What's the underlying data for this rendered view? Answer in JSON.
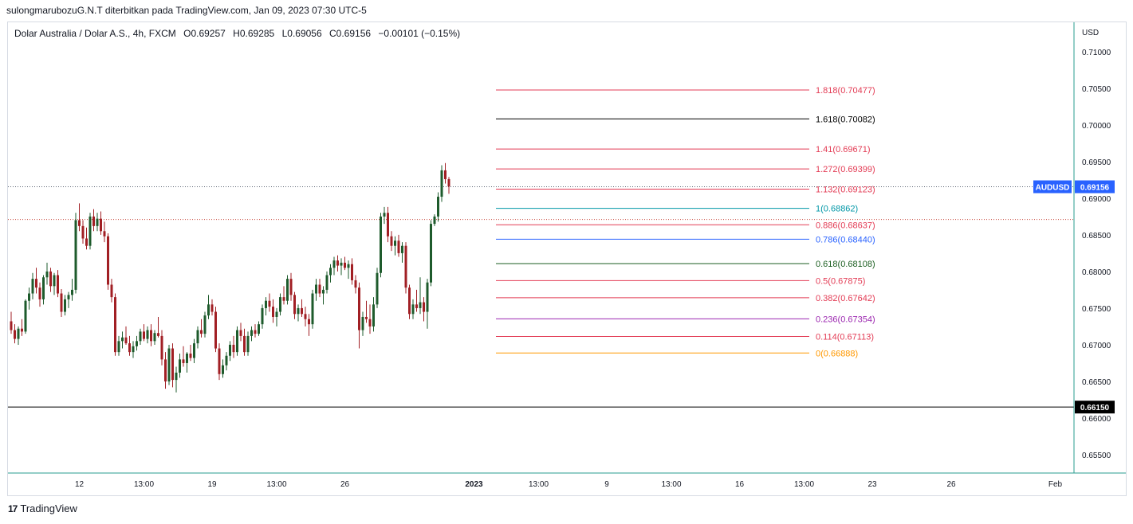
{
  "header": {
    "publisher_line": "sulongmarubozuG.N.T diterbitkan pada TradingView.com, Jan 09, 2023 07:30 UTC-5"
  },
  "symbol_info": {
    "title": "Dolar Australia / Dolar A.S., 4h, FXCM",
    "open_label": "O",
    "open": "0.69257",
    "high_label": "H",
    "high": "0.69285",
    "low_label": "L",
    "low": "0.69056",
    "close_label": "C",
    "close": "0.69156",
    "change": "−0.00101 (−0.15%)"
  },
  "footer": {
    "brand": "TradingView",
    "logo_text": "17"
  },
  "colors": {
    "up": "#1e5b2c",
    "down": "#a11f24",
    "axis_text": "#131722",
    "grid_border": "#d6dbe3",
    "price_badge": "#2962ff",
    "horizontal_line": "#000000",
    "dotted_price": "#5a6372",
    "dotted_red": "#c84a3f"
  },
  "chart_data": {
    "type": "candlestick",
    "y_axis": {
      "currency": "USD",
      "ticks": [
        "0.71000",
        "0.70500",
        "0.70000",
        "0.69500",
        "0.69000",
        "0.68500",
        "0.68000",
        "0.67500",
        "0.67000",
        "0.66500",
        "0.66000",
        "0.65500"
      ],
      "ylim": [
        0.6525,
        0.714
      ]
    },
    "x_axis": {
      "ticks": [
        {
          "label": "12",
          "bold": false,
          "idx": 19
        },
        {
          "label": "13:00",
          "bold": false,
          "idx": 37
        },
        {
          "label": "19",
          "bold": false,
          "idx": 56
        },
        {
          "label": "13:00",
          "bold": false,
          "idx": 74
        },
        {
          "label": "26",
          "bold": false,
          "idx": 93
        },
        {
          "label": "2023",
          "bold": true,
          "idx": 129
        },
        {
          "label": "13:00",
          "bold": false,
          "idx": 147
        },
        {
          "label": "9",
          "bold": false,
          "idx": 166
        },
        {
          "label": "13:00",
          "bold": false,
          "idx": 184
        },
        {
          "label": "16",
          "bold": false,
          "idx": 203
        },
        {
          "label": "13:00",
          "bold": false,
          "idx": 221
        },
        {
          "label": "23",
          "bold": false,
          "idx": 240
        },
        {
          "label": "26",
          "bold": false,
          "idx": 262
        },
        {
          "label": "Feb",
          "bold": false,
          "idx": 291
        }
      ]
    },
    "current_price": {
      "symbol": "AUDUSD",
      "value": "0.69156",
      "price": 0.69156
    },
    "horizontal_line": {
      "value": "0.66150",
      "price": 0.6615
    },
    "dotted_level": 0.6871,
    "fibonacci": [
      {
        "label": "1.818(0.70477)",
        "price": 0.70477,
        "color": "#e33b54"
      },
      {
        "label": "1.618(0.70082)",
        "price": 0.70082,
        "color": "#000000"
      },
      {
        "label": "1.41(0.69671)",
        "price": 0.69671,
        "color": "#e33b54"
      },
      {
        "label": "1.272(0.69399)",
        "price": 0.69399,
        "color": "#e33b54"
      },
      {
        "label": "1.132(0.69123)",
        "price": 0.69123,
        "color": "#e33b54"
      },
      {
        "label": "1(0.68862)",
        "price": 0.68862,
        "color": "#0097a7"
      },
      {
        "label": "0.886(0.68637)",
        "price": 0.68637,
        "color": "#e33b54"
      },
      {
        "label": "0.786(0.68440)",
        "price": 0.6844,
        "color": "#2962ff"
      },
      {
        "label": "0.618(0.68108)",
        "price": 0.68108,
        "color": "#1b5e20"
      },
      {
        "label": "0.5(0.67875)",
        "price": 0.67875,
        "color": "#e33b54"
      },
      {
        "label": "0.382(0.67642)",
        "price": 0.67642,
        "color": "#e33b54"
      },
      {
        "label": "0.236(0.67354)",
        "price": 0.67354,
        "color": "#9c27b0"
      },
      {
        "label": "0.114(0.67113)",
        "price": 0.67113,
        "color": "#e33b54"
      },
      {
        "label": "0(0.66888)",
        "price": 0.66888,
        "color": "#ff9800"
      }
    ],
    "candles": [
      {
        "o": 0.6732,
        "h": 0.6745,
        "l": 0.6715,
        "c": 0.672
      },
      {
        "o": 0.672,
        "h": 0.6728,
        "l": 0.6702,
        "c": 0.6708
      },
      {
        "o": 0.6708,
        "h": 0.6725,
        "l": 0.67,
        "c": 0.6722
      },
      {
        "o": 0.6722,
        "h": 0.6735,
        "l": 0.6712,
        "c": 0.6718
      },
      {
        "o": 0.6718,
        "h": 0.6762,
        "l": 0.6715,
        "c": 0.676
      },
      {
        "o": 0.676,
        "h": 0.6778,
        "l": 0.6748,
        "c": 0.677
      },
      {
        "o": 0.677,
        "h": 0.6798,
        "l": 0.6762,
        "c": 0.679
      },
      {
        "o": 0.679,
        "h": 0.6805,
        "l": 0.677,
        "c": 0.6778
      },
      {
        "o": 0.6778,
        "h": 0.6785,
        "l": 0.6752,
        "c": 0.6762
      },
      {
        "o": 0.6762,
        "h": 0.6795,
        "l": 0.6755,
        "c": 0.6792
      },
      {
        "o": 0.6792,
        "h": 0.6812,
        "l": 0.6782,
        "c": 0.68
      },
      {
        "o": 0.68,
        "h": 0.6805,
        "l": 0.6772,
        "c": 0.678
      },
      {
        "o": 0.678,
        "h": 0.6798,
        "l": 0.6768,
        "c": 0.6795
      },
      {
        "o": 0.6795,
        "h": 0.6802,
        "l": 0.6765,
        "c": 0.677
      },
      {
        "o": 0.677,
        "h": 0.6776,
        "l": 0.6738,
        "c": 0.6745
      },
      {
        "o": 0.6745,
        "h": 0.6768,
        "l": 0.674,
        "c": 0.6762
      },
      {
        "o": 0.6762,
        "h": 0.6772,
        "l": 0.675,
        "c": 0.6768
      },
      {
        "o": 0.6768,
        "h": 0.679,
        "l": 0.676,
        "c": 0.6775
      },
      {
        "o": 0.6775,
        "h": 0.688,
        "l": 0.677,
        "c": 0.687
      },
      {
        "o": 0.687,
        "h": 0.6893,
        "l": 0.6855,
        "c": 0.6862
      },
      {
        "o": 0.6862,
        "h": 0.687,
        "l": 0.6838,
        "c": 0.6845
      },
      {
        "o": 0.6845,
        "h": 0.686,
        "l": 0.683,
        "c": 0.6835
      },
      {
        "o": 0.6835,
        "h": 0.688,
        "l": 0.683,
        "c": 0.6875
      },
      {
        "o": 0.6875,
        "h": 0.6885,
        "l": 0.6855,
        "c": 0.6862
      },
      {
        "o": 0.6862,
        "h": 0.688,
        "l": 0.6855,
        "c": 0.6872
      },
      {
        "o": 0.6872,
        "h": 0.6882,
        "l": 0.685,
        "c": 0.6855
      },
      {
        "o": 0.6855,
        "h": 0.6868,
        "l": 0.684,
        "c": 0.6848
      },
      {
        "o": 0.6848,
        "h": 0.6852,
        "l": 0.6775,
        "c": 0.6782
      },
      {
        "o": 0.6782,
        "h": 0.679,
        "l": 0.6758,
        "c": 0.6765
      },
      {
        "o": 0.6765,
        "h": 0.677,
        "l": 0.6685,
        "c": 0.669
      },
      {
        "o": 0.669,
        "h": 0.6712,
        "l": 0.6685,
        "c": 0.6705
      },
      {
        "o": 0.6705,
        "h": 0.6718,
        "l": 0.6695,
        "c": 0.671
      },
      {
        "o": 0.671,
        "h": 0.6725,
        "l": 0.67,
        "c": 0.6702
      },
      {
        "o": 0.6702,
        "h": 0.6712,
        "l": 0.6685,
        "c": 0.669
      },
      {
        "o": 0.669,
        "h": 0.6705,
        "l": 0.6682,
        "c": 0.6698
      },
      {
        "o": 0.6698,
        "h": 0.6712,
        "l": 0.6692,
        "c": 0.6705
      },
      {
        "o": 0.6705,
        "h": 0.6722,
        "l": 0.67,
        "c": 0.6718
      },
      {
        "o": 0.6718,
        "h": 0.6728,
        "l": 0.6705,
        "c": 0.6708
      },
      {
        "o": 0.6708,
        "h": 0.6725,
        "l": 0.6702,
        "c": 0.672
      },
      {
        "o": 0.672,
        "h": 0.6728,
        "l": 0.6698,
        "c": 0.6705
      },
      {
        "o": 0.6705,
        "h": 0.672,
        "l": 0.67,
        "c": 0.6716
      },
      {
        "o": 0.6716,
        "h": 0.6738,
        "l": 0.671,
        "c": 0.6712
      },
      {
        "o": 0.6712,
        "h": 0.672,
        "l": 0.6672,
        "c": 0.668
      },
      {
        "o": 0.668,
        "h": 0.669,
        "l": 0.664,
        "c": 0.665
      },
      {
        "o": 0.665,
        "h": 0.67,
        "l": 0.6645,
        "c": 0.6695
      },
      {
        "o": 0.6695,
        "h": 0.6702,
        "l": 0.6642,
        "c": 0.6652
      },
      {
        "o": 0.6652,
        "h": 0.667,
        "l": 0.6635,
        "c": 0.6662
      },
      {
        "o": 0.6662,
        "h": 0.6688,
        "l": 0.6655,
        "c": 0.668
      },
      {
        "o": 0.668,
        "h": 0.6698,
        "l": 0.667,
        "c": 0.6675
      },
      {
        "o": 0.6675,
        "h": 0.669,
        "l": 0.6662,
        "c": 0.6688
      },
      {
        "o": 0.6688,
        "h": 0.67,
        "l": 0.6678,
        "c": 0.6682
      },
      {
        "o": 0.6682,
        "h": 0.6708,
        "l": 0.6675,
        "c": 0.6702
      },
      {
        "o": 0.6702,
        "h": 0.6725,
        "l": 0.6695,
        "c": 0.672
      },
      {
        "o": 0.672,
        "h": 0.6735,
        "l": 0.671,
        "c": 0.6715
      },
      {
        "o": 0.6715,
        "h": 0.6745,
        "l": 0.671,
        "c": 0.674
      },
      {
        "o": 0.674,
        "h": 0.6768,
        "l": 0.6735,
        "c": 0.6755
      },
      {
        "o": 0.6755,
        "h": 0.6762,
        "l": 0.674,
        "c": 0.6745
      },
      {
        "o": 0.6745,
        "h": 0.6752,
        "l": 0.669,
        "c": 0.6695
      },
      {
        "o": 0.6695,
        "h": 0.6702,
        "l": 0.6652,
        "c": 0.666
      },
      {
        "o": 0.666,
        "h": 0.668,
        "l": 0.6655,
        "c": 0.6672
      },
      {
        "o": 0.6672,
        "h": 0.669,
        "l": 0.6665,
        "c": 0.6685
      },
      {
        "o": 0.6685,
        "h": 0.6705,
        "l": 0.6678,
        "c": 0.67
      },
      {
        "o": 0.67,
        "h": 0.6712,
        "l": 0.6682,
        "c": 0.669
      },
      {
        "o": 0.669,
        "h": 0.6725,
        "l": 0.6685,
        "c": 0.672
      },
      {
        "o": 0.672,
        "h": 0.673,
        "l": 0.6705,
        "c": 0.6712
      },
      {
        "o": 0.6712,
        "h": 0.6722,
        "l": 0.6685,
        "c": 0.669
      },
      {
        "o": 0.669,
        "h": 0.6718,
        "l": 0.6685,
        "c": 0.6712
      },
      {
        "o": 0.6712,
        "h": 0.6725,
        "l": 0.6705,
        "c": 0.672
      },
      {
        "o": 0.672,
        "h": 0.6728,
        "l": 0.671,
        "c": 0.6715
      },
      {
        "o": 0.6715,
        "h": 0.6732,
        "l": 0.6712,
        "c": 0.6728
      },
      {
        "o": 0.6728,
        "h": 0.6755,
        "l": 0.6722,
        "c": 0.675
      },
      {
        "o": 0.675,
        "h": 0.6765,
        "l": 0.674,
        "c": 0.676
      },
      {
        "o": 0.676,
        "h": 0.677,
        "l": 0.6745,
        "c": 0.6752
      },
      {
        "o": 0.6752,
        "h": 0.6762,
        "l": 0.673,
        "c": 0.6738
      },
      {
        "o": 0.6738,
        "h": 0.675,
        "l": 0.6725,
        "c": 0.6745
      },
      {
        "o": 0.6745,
        "h": 0.677,
        "l": 0.674,
        "c": 0.6765
      },
      {
        "o": 0.6765,
        "h": 0.678,
        "l": 0.6755,
        "c": 0.676
      },
      {
        "o": 0.676,
        "h": 0.6795,
        "l": 0.6755,
        "c": 0.679
      },
      {
        "o": 0.679,
        "h": 0.6798,
        "l": 0.676,
        "c": 0.6768
      },
      {
        "o": 0.6768,
        "h": 0.6772,
        "l": 0.6735,
        "c": 0.6742
      },
      {
        "o": 0.6742,
        "h": 0.6755,
        "l": 0.6732,
        "c": 0.675
      },
      {
        "o": 0.675,
        "h": 0.6762,
        "l": 0.6738,
        "c": 0.6742
      },
      {
        "o": 0.6742,
        "h": 0.6752,
        "l": 0.6725,
        "c": 0.6735
      },
      {
        "o": 0.6735,
        "h": 0.6742,
        "l": 0.6712,
        "c": 0.6728
      },
      {
        "o": 0.6728,
        "h": 0.6775,
        "l": 0.6722,
        "c": 0.677
      },
      {
        "o": 0.677,
        "h": 0.679,
        "l": 0.676,
        "c": 0.6782
      },
      {
        "o": 0.6782,
        "h": 0.679,
        "l": 0.6765,
        "c": 0.677
      },
      {
        "o": 0.677,
        "h": 0.678,
        "l": 0.6755,
        "c": 0.6775
      },
      {
        "o": 0.6775,
        "h": 0.68,
        "l": 0.677,
        "c": 0.6795
      },
      {
        "o": 0.6795,
        "h": 0.681,
        "l": 0.6785,
        "c": 0.6805
      },
      {
        "o": 0.6805,
        "h": 0.682,
        "l": 0.6795,
        "c": 0.6815
      },
      {
        "o": 0.6815,
        "h": 0.6822,
        "l": 0.68,
        "c": 0.6808
      },
      {
        "o": 0.6808,
        "h": 0.6818,
        "l": 0.6795,
        "c": 0.6812
      },
      {
        "o": 0.6812,
        "h": 0.682,
        "l": 0.6802,
        "c": 0.6805
      },
      {
        "o": 0.6805,
        "h": 0.6815,
        "l": 0.679,
        "c": 0.681
      },
      {
        "o": 0.681,
        "h": 0.6818,
        "l": 0.6782,
        "c": 0.6788
      },
      {
        "o": 0.6788,
        "h": 0.6795,
        "l": 0.677,
        "c": 0.6778
      },
      {
        "o": 0.6778,
        "h": 0.6785,
        "l": 0.6695,
        "c": 0.672
      },
      {
        "o": 0.672,
        "h": 0.6745,
        "l": 0.6712,
        "c": 0.6738
      },
      {
        "o": 0.6738,
        "h": 0.676,
        "l": 0.673,
        "c": 0.6735
      },
      {
        "o": 0.6735,
        "h": 0.6755,
        "l": 0.6715,
        "c": 0.6725
      },
      {
        "o": 0.6725,
        "h": 0.6765,
        "l": 0.6718,
        "c": 0.6755
      },
      {
        "o": 0.6755,
        "h": 0.6805,
        "l": 0.675,
        "c": 0.6798
      },
      {
        "o": 0.6798,
        "h": 0.688,
        "l": 0.6792,
        "c": 0.6875
      },
      {
        "o": 0.6875,
        "h": 0.6888,
        "l": 0.6865,
        "c": 0.688
      },
      {
        "o": 0.688,
        "h": 0.6888,
        "l": 0.684,
        "c": 0.6848
      },
      {
        "o": 0.6848,
        "h": 0.6855,
        "l": 0.6828,
        "c": 0.6835
      },
      {
        "o": 0.6835,
        "h": 0.6848,
        "l": 0.6822,
        "c": 0.6842
      },
      {
        "o": 0.6842,
        "h": 0.685,
        "l": 0.682,
        "c": 0.6825
      },
      {
        "o": 0.6825,
        "h": 0.684,
        "l": 0.6812,
        "c": 0.6835
      },
      {
        "o": 0.6835,
        "h": 0.684,
        "l": 0.677,
        "c": 0.6778
      },
      {
        "o": 0.6778,
        "h": 0.6782,
        "l": 0.6735,
        "c": 0.6742
      },
      {
        "o": 0.6742,
        "h": 0.6762,
        "l": 0.6735,
        "c": 0.6755
      },
      {
        "o": 0.6755,
        "h": 0.6775,
        "l": 0.6745,
        "c": 0.675
      },
      {
        "o": 0.675,
        "h": 0.6792,
        "l": 0.6742,
        "c": 0.6758
      },
      {
        "o": 0.6758,
        "h": 0.6765,
        "l": 0.6732,
        "c": 0.6745
      },
      {
        "o": 0.6745,
        "h": 0.679,
        "l": 0.6722,
        "c": 0.6785
      },
      {
        "o": 0.6785,
        "h": 0.687,
        "l": 0.678,
        "c": 0.6865
      },
      {
        "o": 0.6865,
        "h": 0.6878,
        "l": 0.6862,
        "c": 0.6875
      },
      {
        "o": 0.6875,
        "h": 0.6908,
        "l": 0.6868,
        "c": 0.6902
      },
      {
        "o": 0.6902,
        "h": 0.6945,
        "l": 0.6895,
        "c": 0.6938
      },
      {
        "o": 0.6938,
        "h": 0.6948,
        "l": 0.692,
        "c": 0.6926
      },
      {
        "o": 0.6926,
        "h": 0.6929,
        "l": 0.6906,
        "c": 0.6916
      }
    ]
  }
}
